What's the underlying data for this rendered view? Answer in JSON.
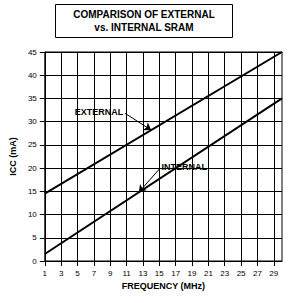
{
  "chart_data": {
    "type": "line",
    "title": "COMPARISON OF EXTERNAL\nvs. INTERNAL SRAM",
    "x_label": "FREQUENCY (MHz)",
    "y_label": "ICC (mA)",
    "x": [
      1,
      30
    ],
    "series": [
      {
        "name": "EXTERNAL",
        "color": "#000000",
        "values": [
          14.5,
          45
        ]
      },
      {
        "name": "INTERNAL",
        "color": "#000000",
        "values": [
          1.5,
          35
        ]
      }
    ],
    "xlim": [
      1,
      30
    ],
    "xticks": [
      1,
      3,
      5,
      7,
      9,
      11,
      13,
      15,
      17,
      19,
      21,
      23,
      25,
      27,
      29
    ],
    "ylim": [
      0,
      45
    ],
    "yticks": [
      0,
      5,
      10,
      15,
      20,
      25,
      30,
      35,
      40,
      45
    ],
    "grid": true,
    "annotations": [
      {
        "text": "EXTERNAL",
        "x": 14,
        "y": 28.2,
        "series": "EXTERNAL"
      },
      {
        "text": "INTERNAL",
        "x": 12.5,
        "y": 14.8,
        "series": "INTERNAL"
      }
    ]
  }
}
